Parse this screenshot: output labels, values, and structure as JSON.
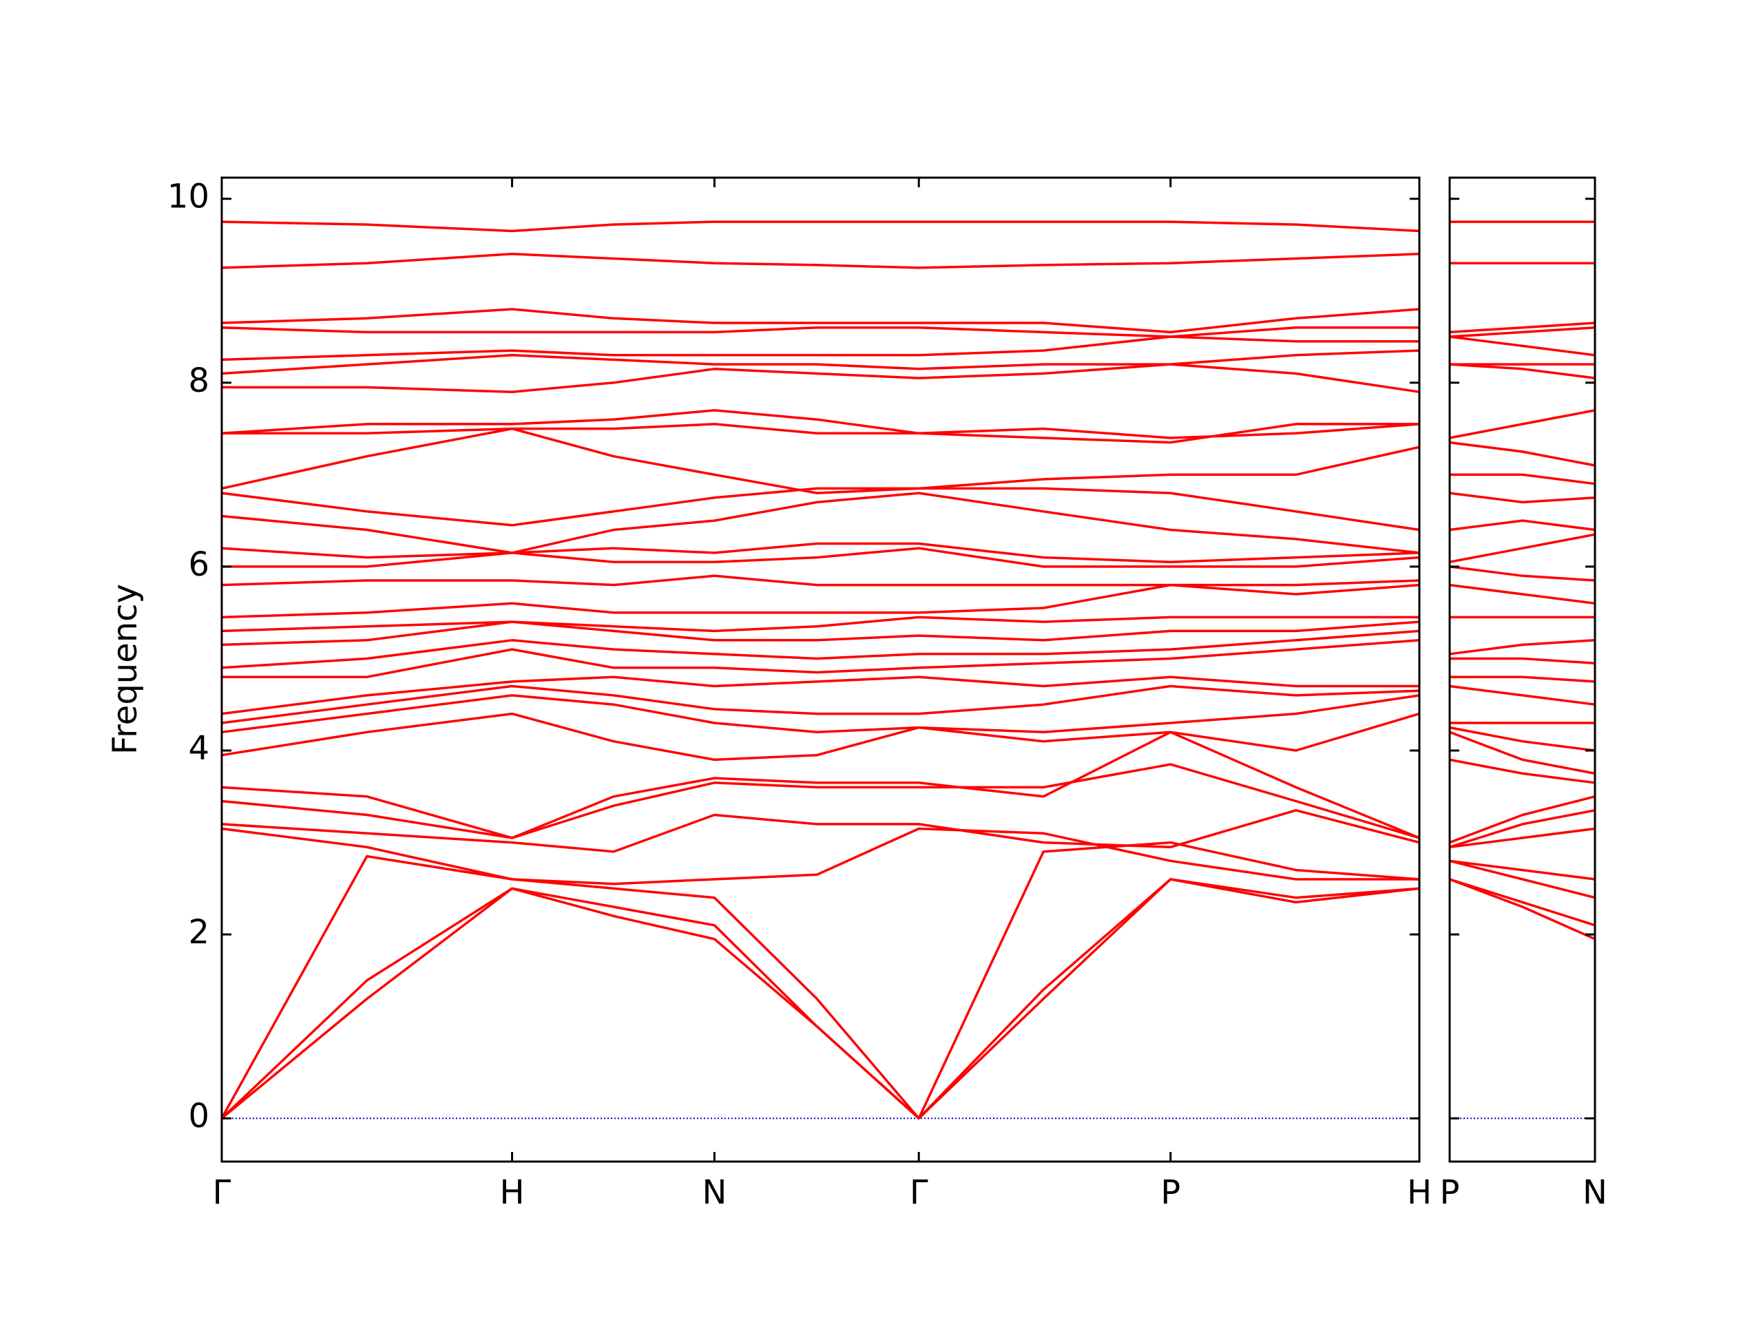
{
  "chart_data": [
    {
      "type": "line",
      "ylabel": "Frequency",
      "color": "#ff0000",
      "xlim": [
        0,
        4.125
      ],
      "ylim": [
        -0.47,
        10.23
      ],
      "yticks": [
        0,
        2,
        4,
        6,
        8,
        10
      ],
      "xticks": [
        {
          "value": 0,
          "label": "Γ"
        },
        {
          "value": 1.0,
          "label": "H"
        },
        {
          "value": 1.697,
          "label": "N"
        },
        {
          "value": 2.401,
          "label": "Γ"
        },
        {
          "value": 3.268,
          "label": "P"
        },
        {
          "value": 4.125,
          "label": "H"
        }
      ],
      "zero_line": 0,
      "zero_line_color": "#0000cc",
      "x": [
        0,
        0.5,
        1.0,
        1.35,
        1.697,
        2.05,
        2.401,
        2.83,
        3.268,
        3.7,
        4.125
      ],
      "series": [
        {
          "values": [
            0,
            1.3,
            2.5,
            2.2,
            1.95,
            1.0,
            0,
            1.3,
            2.6,
            2.4,
            2.5
          ]
        },
        {
          "values": [
            0,
            1.5,
            2.5,
            2.3,
            2.1,
            1.0,
            0,
            1.4,
            2.6,
            2.35,
            2.5
          ]
        },
        {
          "values": [
            0,
            2.85,
            2.6,
            2.5,
            2.4,
            1.3,
            0,
            2.9,
            3.0,
            2.7,
            2.6
          ]
        },
        {
          "values": [
            3.15,
            2.95,
            2.6,
            2.55,
            2.6,
            2.65,
            3.15,
            3.1,
            2.8,
            2.6,
            2.6
          ]
        },
        {
          "values": [
            3.2,
            3.1,
            3.0,
            2.9,
            3.3,
            3.2,
            3.2,
            3.0,
            2.95,
            3.35,
            3.0
          ]
        },
        {
          "values": [
            3.45,
            3.3,
            3.05,
            3.4,
            3.65,
            3.6,
            3.6,
            3.6,
            3.85,
            3.45,
            3.05
          ]
        },
        {
          "values": [
            3.6,
            3.5,
            3.05,
            3.5,
            3.7,
            3.65,
            3.65,
            3.5,
            4.2,
            3.6,
            3.05
          ]
        },
        {
          "values": [
            3.95,
            4.2,
            4.4,
            4.1,
            3.9,
            3.95,
            4.25,
            4.1,
            4.2,
            4.0,
            4.4
          ]
        },
        {
          "values": [
            4.2,
            4.4,
            4.6,
            4.5,
            4.3,
            4.2,
            4.25,
            4.2,
            4.3,
            4.4,
            4.6
          ]
        },
        {
          "values": [
            4.3,
            4.5,
            4.7,
            4.6,
            4.45,
            4.4,
            4.4,
            4.5,
            4.7,
            4.6,
            4.65
          ]
        },
        {
          "values": [
            4.4,
            4.6,
            4.75,
            4.8,
            4.7,
            4.75,
            4.8,
            4.7,
            4.8,
            4.7,
            4.7
          ]
        },
        {
          "values": [
            4.8,
            4.8,
            5.1,
            4.9,
            4.9,
            4.85,
            4.9,
            4.95,
            5.0,
            5.1,
            5.2
          ]
        },
        {
          "values": [
            4.9,
            5.0,
            5.2,
            5.1,
            5.05,
            5.0,
            5.05,
            5.05,
            5.1,
            5.2,
            5.3
          ]
        },
        {
          "values": [
            5.15,
            5.2,
            5.4,
            5.3,
            5.2,
            5.2,
            5.25,
            5.2,
            5.3,
            5.3,
            5.4
          ]
        },
        {
          "values": [
            5.3,
            5.35,
            5.4,
            5.35,
            5.3,
            5.35,
            5.45,
            5.4,
            5.45,
            5.45,
            5.45
          ]
        },
        {
          "values": [
            5.45,
            5.5,
            5.6,
            5.5,
            5.5,
            5.5,
            5.5,
            5.55,
            5.8,
            5.7,
            5.8
          ]
        },
        {
          "values": [
            5.8,
            5.85,
            5.85,
            5.8,
            5.9,
            5.8,
            5.8,
            5.8,
            5.8,
            5.8,
            5.85
          ]
        },
        {
          "values": [
            6.0,
            6.0,
            6.15,
            6.05,
            6.05,
            6.1,
            6.2,
            6.0,
            6.0,
            6.0,
            6.1
          ]
        },
        {
          "values": [
            6.2,
            6.1,
            6.15,
            6.2,
            6.15,
            6.25,
            6.25,
            6.1,
            6.05,
            6.1,
            6.15
          ]
        },
        {
          "values": [
            6.55,
            6.4,
            6.15,
            6.4,
            6.5,
            6.7,
            6.8,
            6.6,
            6.4,
            6.3,
            6.15
          ]
        },
        {
          "values": [
            6.8,
            6.6,
            6.45,
            6.6,
            6.75,
            6.85,
            6.85,
            6.85,
            6.8,
            6.6,
            6.4
          ]
        },
        {
          "values": [
            6.85,
            7.2,
            7.5,
            7.2,
            7.0,
            6.8,
            6.85,
            6.95,
            7.0,
            7.0,
            7.3
          ]
        },
        {
          "values": [
            7.45,
            7.45,
            7.5,
            7.5,
            7.55,
            7.45,
            7.45,
            7.5,
            7.4,
            7.45,
            7.55
          ]
        },
        {
          "values": [
            7.45,
            7.55,
            7.55,
            7.6,
            7.7,
            7.6,
            7.45,
            7.4,
            7.35,
            7.55,
            7.55
          ]
        },
        {
          "values": [
            7.95,
            7.95,
            7.9,
            8.0,
            8.15,
            8.1,
            8.05,
            8.1,
            8.2,
            8.1,
            7.9
          ]
        },
        {
          "values": [
            8.1,
            8.2,
            8.3,
            8.25,
            8.2,
            8.2,
            8.15,
            8.2,
            8.2,
            8.3,
            8.35
          ]
        },
        {
          "values": [
            8.25,
            8.3,
            8.35,
            8.3,
            8.3,
            8.3,
            8.3,
            8.35,
            8.5,
            8.45,
            8.45
          ]
        },
        {
          "values": [
            8.6,
            8.55,
            8.55,
            8.55,
            8.55,
            8.6,
            8.6,
            8.55,
            8.5,
            8.6,
            8.6
          ]
        },
        {
          "values": [
            8.65,
            8.7,
            8.8,
            8.7,
            8.65,
            8.65,
            8.65,
            8.65,
            8.55,
            8.7,
            8.8
          ]
        },
        {
          "values": [
            9.25,
            9.3,
            9.4,
            9.35,
            9.3,
            9.28,
            9.25,
            9.28,
            9.3,
            9.35,
            9.4
          ]
        },
        {
          "values": [
            9.75,
            9.72,
            9.65,
            9.72,
            9.75,
            9.75,
            9.75,
            9.75,
            9.75,
            9.72,
            9.65
          ]
        }
      ]
    },
    {
      "type": "line",
      "color": "#ff0000",
      "xlim": [
        0,
        0.498
      ],
      "ylim": [
        -0.47,
        10.23
      ],
      "xticks": [
        {
          "value": 0,
          "label": "P"
        },
        {
          "value": 0.498,
          "label": "N"
        }
      ],
      "zero_line": 0,
      "zero_line_color": "#0000cc",
      "x": [
        0,
        0.25,
        0.498
      ],
      "series": [
        {
          "values": [
            2.6,
            2.3,
            1.95
          ]
        },
        {
          "values": [
            2.6,
            2.35,
            2.1
          ]
        },
        {
          "values": [
            2.8,
            2.6,
            2.4
          ]
        },
        {
          "values": [
            2.8,
            2.7,
            2.6
          ]
        },
        {
          "values": [
            2.95,
            3.05,
            3.15
          ]
        },
        {
          "values": [
            2.95,
            3.2,
            3.35
          ]
        },
        {
          "values": [
            3.0,
            3.3,
            3.5
          ]
        },
        {
          "values": [
            3.9,
            3.75,
            3.65
          ]
        },
        {
          "values": [
            4.2,
            3.9,
            3.75
          ]
        },
        {
          "values": [
            4.25,
            4.1,
            4.0
          ]
        },
        {
          "values": [
            4.3,
            4.3,
            4.3
          ]
        },
        {
          "values": [
            4.7,
            4.6,
            4.5
          ]
        },
        {
          "values": [
            4.8,
            4.8,
            4.75
          ]
        },
        {
          "values": [
            5.0,
            5.0,
            4.95
          ]
        },
        {
          "values": [
            5.05,
            5.15,
            5.2
          ]
        },
        {
          "values": [
            5.45,
            5.45,
            5.45
          ]
        },
        {
          "values": [
            5.8,
            5.7,
            5.6
          ]
        },
        {
          "values": [
            6.0,
            5.9,
            5.85
          ]
        },
        {
          "values": [
            6.05,
            6.2,
            6.35
          ]
        },
        {
          "values": [
            6.4,
            6.5,
            6.4
          ]
        },
        {
          "values": [
            6.8,
            6.7,
            6.75
          ]
        },
        {
          "values": [
            7.0,
            7.0,
            6.9
          ]
        },
        {
          "values": [
            7.35,
            7.25,
            7.1
          ]
        },
        {
          "values": [
            7.4,
            7.55,
            7.7
          ]
        },
        {
          "values": [
            8.2,
            8.15,
            8.05
          ]
        },
        {
          "values": [
            8.2,
            8.2,
            8.2
          ]
        },
        {
          "values": [
            8.5,
            8.4,
            8.3
          ]
        },
        {
          "values": [
            8.5,
            8.55,
            8.6
          ]
        },
        {
          "values": [
            8.55,
            8.6,
            8.65
          ]
        },
        {
          "values": [
            9.3,
            9.3,
            9.3
          ]
        },
        {
          "values": [
            9.75,
            9.75,
            9.75
          ]
        }
      ]
    }
  ]
}
